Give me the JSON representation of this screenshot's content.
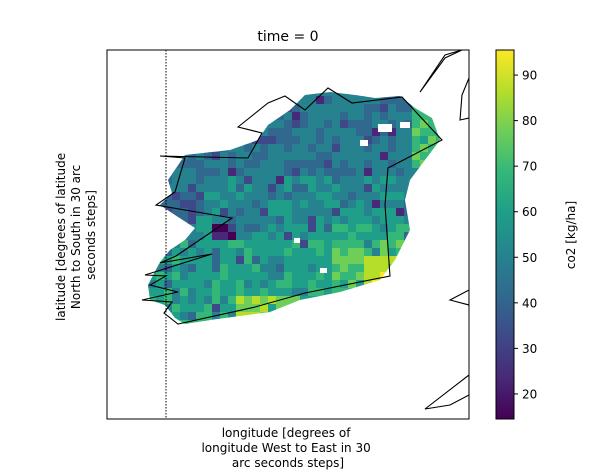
{
  "chart_data": {
    "type": "heatmap",
    "title": "time = 0",
    "xlabel": [
      "longitude [degrees of",
      "longitude West to East in 30",
      "arc seconds steps]"
    ],
    "ylabel": [
      "latitude [degrees of latitude",
      "North to South in 30 arc",
      "seconds steps]"
    ],
    "colorbar": {
      "label": "co2 [kg/ha]",
      "range": [
        14.5,
        95.5
      ],
      "ticks": [
        20,
        30,
        40,
        50,
        60,
        70,
        80,
        90
      ],
      "colormap": "viridis"
    },
    "x_ticks_shown": false,
    "y_ticks_shown": false,
    "grid": false,
    "value_summary": {
      "min": 15,
      "max": 95,
      "typical": [
        50,
        65
      ]
    }
  },
  "colors": {
    "viridis": [
      "#440154",
      "#482878",
      "#3e4989",
      "#31688e",
      "#26828e",
      "#1f9e89",
      "#35b779",
      "#6ece58",
      "#b5de2b",
      "#fde725"
    ]
  }
}
